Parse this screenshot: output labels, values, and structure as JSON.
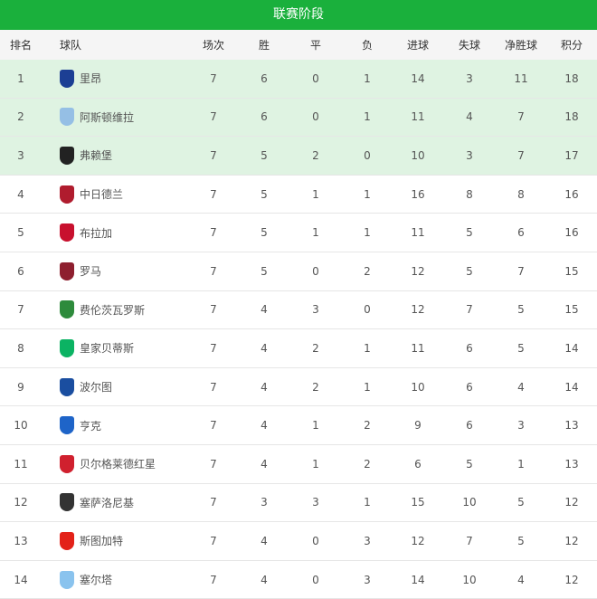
{
  "title": "联赛阶段",
  "headers": [
    "排名",
    "球队",
    "场次",
    "胜",
    "平",
    "负",
    "进球",
    "失球",
    "净胜球",
    "积分"
  ],
  "colors": {
    "header": "#1ab03c",
    "highlight": "#dff3e2"
  },
  "rows": [
    {
      "rank": "1",
      "team": "里昂",
      "p": "7",
      "w": "6",
      "d": "0",
      "l": "1",
      "gf": "14",
      "ga": "3",
      "gd": "11",
      "pts": "18",
      "logo": "#1c3f94"
    },
    {
      "rank": "2",
      "team": "阿斯顿维拉",
      "p": "7",
      "w": "6",
      "d": "0",
      "l": "1",
      "gf": "11",
      "ga": "4",
      "gd": "7",
      "pts": "18",
      "logo": "#95bfe5"
    },
    {
      "rank": "3",
      "team": "弗赖堡",
      "p": "7",
      "w": "5",
      "d": "2",
      "l": "0",
      "gf": "10",
      "ga": "3",
      "gd": "7",
      "pts": "17",
      "logo": "#222222"
    },
    {
      "rank": "4",
      "team": "中日德兰",
      "p": "7",
      "w": "5",
      "d": "1",
      "l": "1",
      "gf": "16",
      "ga": "8",
      "gd": "8",
      "pts": "16",
      "logo": "#b01c2e"
    },
    {
      "rank": "5",
      "team": "布拉加",
      "p": "7",
      "w": "5",
      "d": "1",
      "l": "1",
      "gf": "11",
      "ga": "5",
      "gd": "6",
      "pts": "16",
      "logo": "#c8102e"
    },
    {
      "rank": "6",
      "team": "罗马",
      "p": "7",
      "w": "5",
      "d": "0",
      "l": "2",
      "gf": "12",
      "ga": "5",
      "gd": "7",
      "pts": "15",
      "logo": "#8e1f2f"
    },
    {
      "rank": "7",
      "team": "费伦茨瓦罗斯",
      "p": "7",
      "w": "4",
      "d": "3",
      "l": "0",
      "gf": "12",
      "ga": "7",
      "gd": "5",
      "pts": "15",
      "logo": "#2e8b3c"
    },
    {
      "rank": "8",
      "team": "皇家贝蒂斯",
      "p": "7",
      "w": "4",
      "d": "2",
      "l": "1",
      "gf": "11",
      "ga": "6",
      "gd": "5",
      "pts": "14",
      "logo": "#0bb363"
    },
    {
      "rank": "9",
      "team": "波尔图",
      "p": "7",
      "w": "4",
      "d": "2",
      "l": "1",
      "gf": "10",
      "ga": "6",
      "gd": "4",
      "pts": "14",
      "logo": "#1a4ea0"
    },
    {
      "rank": "10",
      "team": "亨克",
      "p": "7",
      "w": "4",
      "d": "1",
      "l": "2",
      "gf": "9",
      "ga": "6",
      "gd": "3",
      "pts": "13",
      "logo": "#1e64c8"
    },
    {
      "rank": "11",
      "team": "贝尔格莱德红星",
      "p": "7",
      "w": "4",
      "d": "1",
      "l": "2",
      "gf": "6",
      "ga": "5",
      "gd": "1",
      "pts": "13",
      "logo": "#d0202e"
    },
    {
      "rank": "12",
      "team": "塞萨洛尼基",
      "p": "7",
      "w": "3",
      "d": "3",
      "l": "1",
      "gf": "15",
      "ga": "10",
      "gd": "5",
      "pts": "12",
      "logo": "#333333"
    },
    {
      "rank": "13",
      "team": "斯图加特",
      "p": "7",
      "w": "4",
      "d": "0",
      "l": "3",
      "gf": "12",
      "ga": "7",
      "gd": "5",
      "pts": "12",
      "logo": "#e32219"
    },
    {
      "rank": "14",
      "team": "塞尔塔",
      "p": "7",
      "w": "4",
      "d": "0",
      "l": "3",
      "gf": "14",
      "ga": "10",
      "gd": "4",
      "pts": "12",
      "logo": "#8ac3ee"
    }
  ]
}
